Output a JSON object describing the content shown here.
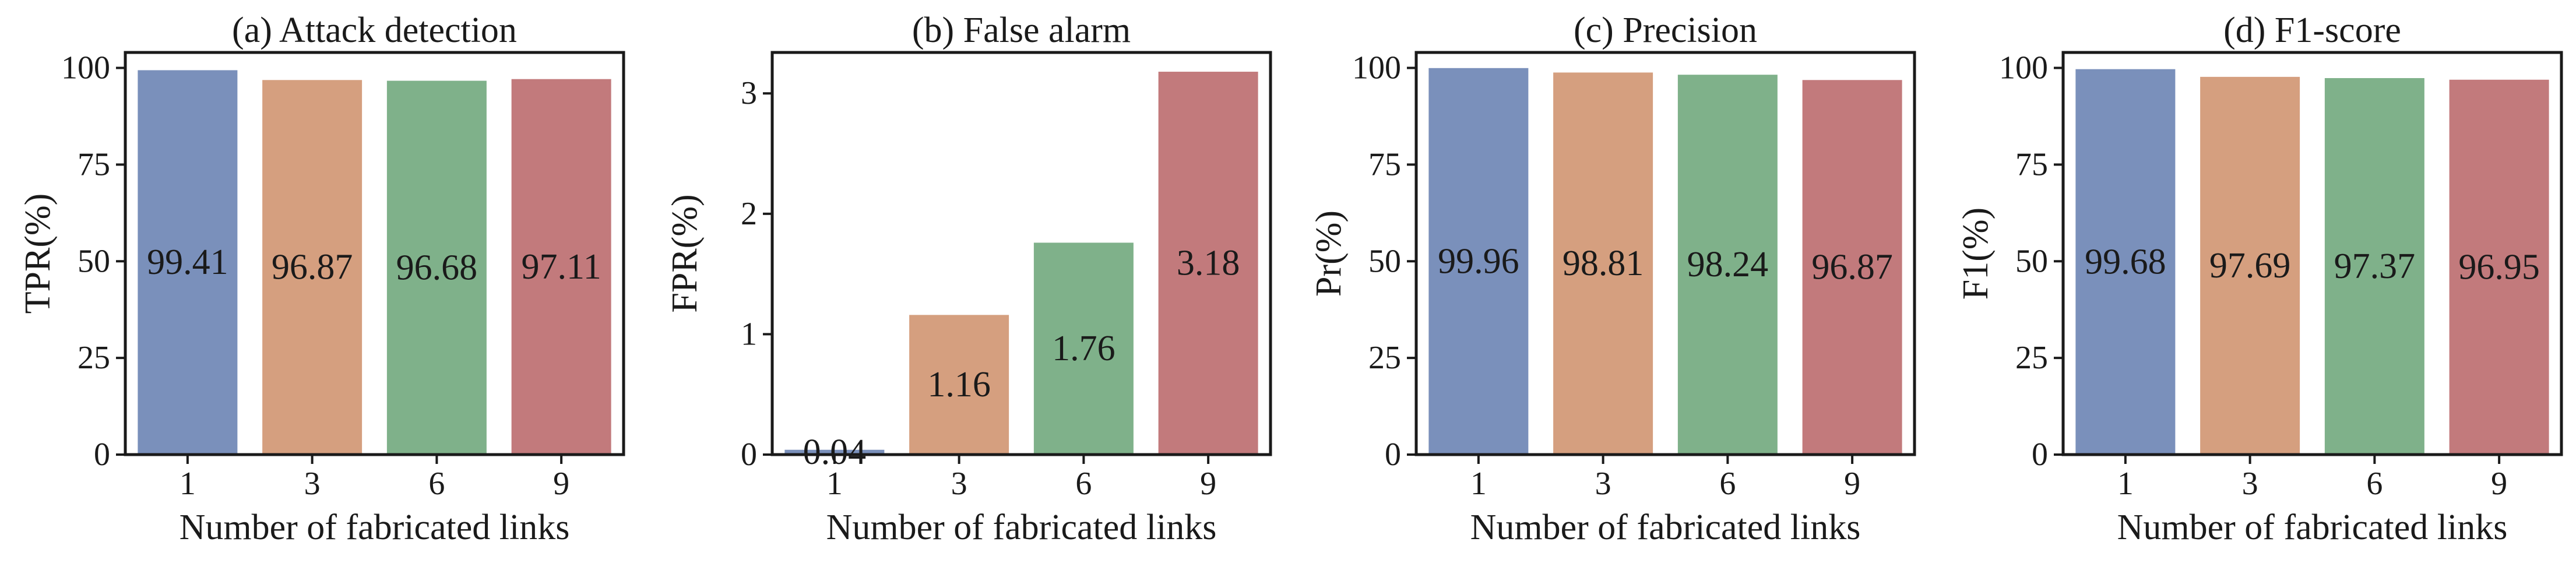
{
  "chart_data": [
    {
      "type": "bar",
      "title": "(a) Attack detection",
      "xlabel": "Number of fabricated links",
      "ylabel": "TPR(%)",
      "categories": [
        "1",
        "3",
        "6",
        "9"
      ],
      "values": [
        99.41,
        96.87,
        96.68,
        97.11
      ],
      "data_labels": [
        "99.41",
        "96.87",
        "96.68",
        "97.11"
      ],
      "ylim": [
        0,
        104
      ],
      "yticks": [
        0,
        25,
        50,
        75,
        100
      ],
      "label_mode": "middle"
    },
    {
      "type": "bar",
      "title": "(b) False alarm",
      "xlabel": "Number of fabricated links",
      "ylabel": "FPR(%)",
      "categories": [
        "1",
        "3",
        "6",
        "9"
      ],
      "values": [
        0.04,
        1.16,
        1.76,
        3.18
      ],
      "data_labels": [
        "0.04",
        "1.16",
        "1.76",
        "3.18"
      ],
      "ylim": [
        0,
        3.34
      ],
      "yticks": [
        0,
        1,
        2,
        3
      ],
      "label_mode": "middle"
    },
    {
      "type": "bar",
      "title": "(c) Precision",
      "xlabel": "Number of fabricated links",
      "ylabel": "Pr(%)",
      "categories": [
        "1",
        "3",
        "6",
        "9"
      ],
      "values": [
        99.96,
        98.81,
        98.24,
        96.87
      ],
      "data_labels": [
        "99.96",
        "98.81",
        "98.24",
        "96.87"
      ],
      "ylim": [
        0,
        104
      ],
      "yticks": [
        0,
        25,
        50,
        75,
        100
      ],
      "label_mode": "middle"
    },
    {
      "type": "bar",
      "title": "(d) F1-score",
      "xlabel": "Number of fabricated links",
      "ylabel": "F1(%)",
      "categories": [
        "1",
        "3",
        "6",
        "9"
      ],
      "values": [
        99.68,
        97.69,
        97.37,
        96.95
      ],
      "data_labels": [
        "99.68",
        "97.69",
        "97.37",
        "96.95"
      ],
      "ylim": [
        0,
        104
      ],
      "yticks": [
        0,
        25,
        50,
        75,
        100
      ],
      "label_mode": "middle"
    }
  ],
  "colors": [
    "#7a90bb",
    "#d59f7f",
    "#7fb18a",
    "#c27a7c"
  ],
  "grid": false,
  "legend": "none"
}
